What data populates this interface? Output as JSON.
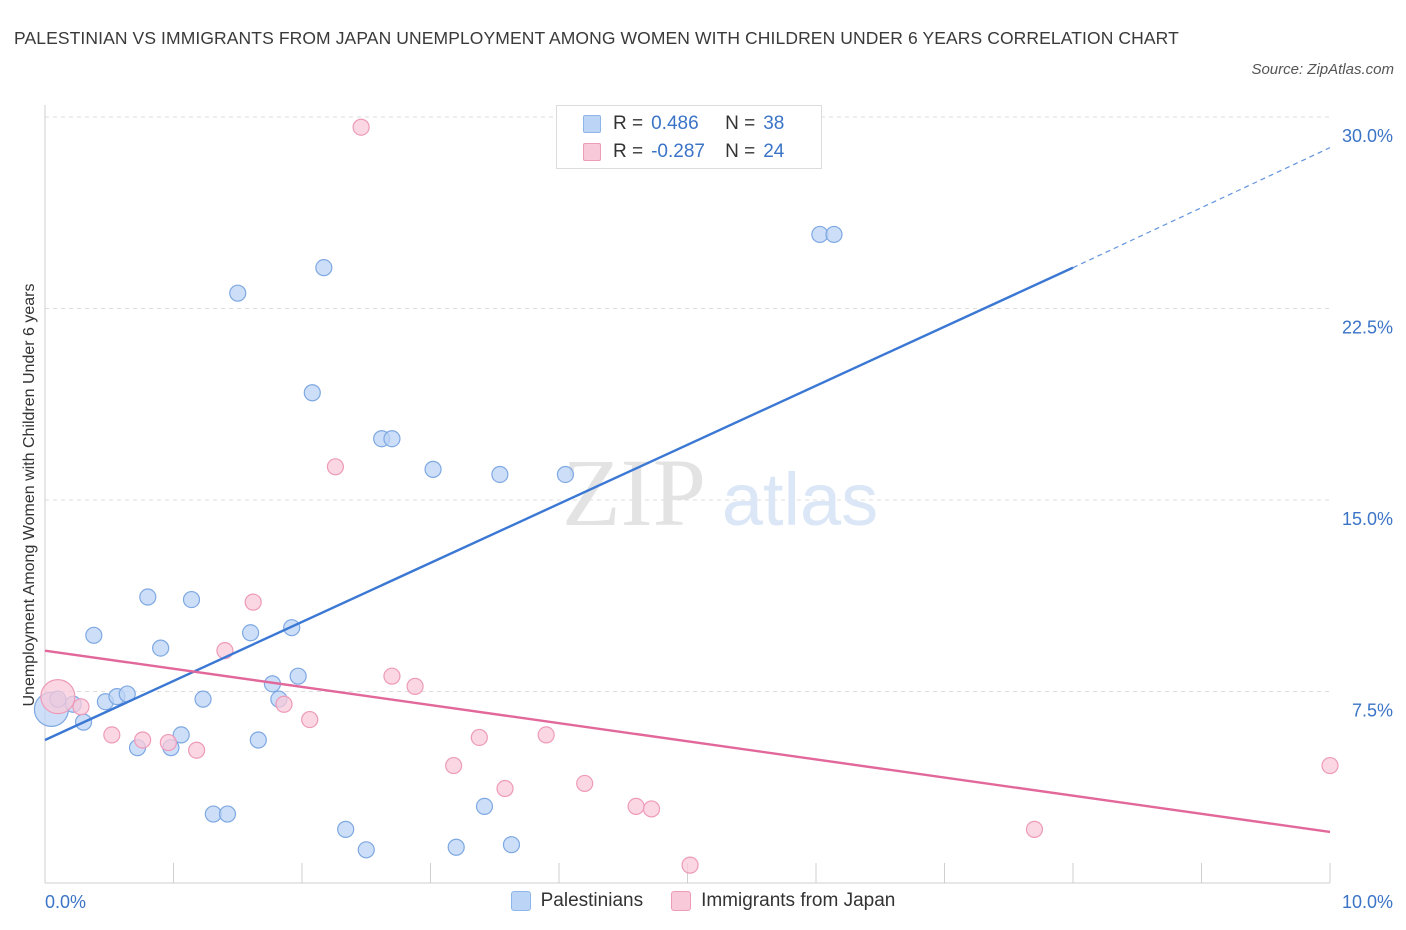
{
  "header": {
    "title": "PALESTINIAN VS IMMIGRANTS FROM JAPAN UNEMPLOYMENT AMONG WOMEN WITH CHILDREN UNDER 6 YEARS CORRELATION CHART",
    "source": "Source: ZipAtlas.com"
  },
  "watermark": {
    "zip": "ZIP",
    "atlas": "atlas"
  },
  "legend": {
    "r_label": "R =",
    "n_label": "N =",
    "rows": [
      {
        "r": "0.486",
        "n": "38",
        "color": "#8fb6ea",
        "fill": "#bcd4f5"
      },
      {
        "r": "-0.287",
        "n": "24",
        "color": "#ef9ab8",
        "fill": "#f8c9d9"
      }
    ]
  },
  "chart_data": {
    "type": "scatter",
    "title": "PALESTINIAN VS IMMIGRANTS FROM JAPAN UNEMPLOYMENT AMONG WOMEN WITH CHILDREN UNDER 6 YEARS CORRELATION CHART",
    "xlabel": "",
    "ylabel": "Unemployment Among Women with Children Under 6 years",
    "xlim": [
      0,
      10
    ],
    "ylim": [
      0,
      30
    ],
    "x_tick_labels": [
      "0.0%",
      "10.0%"
    ],
    "y_ticks": [
      7.5,
      15,
      22.5,
      30
    ],
    "y_tick_labels": [
      "7.5%",
      "15.0%",
      "22.5%",
      "30.0%"
    ],
    "grid": true,
    "legend_placement": "bottom",
    "series": [
      {
        "name": "Palestinians",
        "color": "#3b78d4",
        "fill": "#bcd4f5",
        "stroke": "#7ea8e2",
        "trend": {
          "x": [
            0,
            8
          ],
          "y": [
            5.6,
            24.1
          ],
          "dashed_to": [
            10,
            28.8
          ]
        },
        "points": [
          {
            "x": 0.05,
            "y": 6.8,
            "big": true
          },
          {
            "x": 0.1,
            "y": 7.2
          },
          {
            "x": 0.22,
            "y": 7.0
          },
          {
            "x": 0.3,
            "y": 6.3
          },
          {
            "x": 0.38,
            "y": 9.7
          },
          {
            "x": 0.47,
            "y": 7.1
          },
          {
            "x": 0.56,
            "y": 7.3
          },
          {
            "x": 0.64,
            "y": 7.4
          },
          {
            "x": 0.72,
            "y": 5.3
          },
          {
            "x": 0.8,
            "y": 11.2
          },
          {
            "x": 0.9,
            "y": 9.2
          },
          {
            "x": 0.98,
            "y": 5.3
          },
          {
            "x": 1.06,
            "y": 5.8
          },
          {
            "x": 1.14,
            "y": 11.1
          },
          {
            "x": 1.23,
            "y": 7.2
          },
          {
            "x": 1.31,
            "y": 2.7
          },
          {
            "x": 1.42,
            "y": 2.7
          },
          {
            "x": 1.5,
            "y": 23.1
          },
          {
            "x": 1.6,
            "y": 9.8
          },
          {
            "x": 1.66,
            "y": 5.6
          },
          {
            "x": 1.77,
            "y": 7.8
          },
          {
            "x": 1.82,
            "y": 7.2
          },
          {
            "x": 1.92,
            "y": 10.0
          },
          {
            "x": 1.97,
            "y": 8.1
          },
          {
            "x": 2.08,
            "y": 19.2
          },
          {
            "x": 2.17,
            "y": 24.1
          },
          {
            "x": 2.34,
            "y": 2.1
          },
          {
            "x": 2.5,
            "y": 1.3
          },
          {
            "x": 2.62,
            "y": 17.4
          },
          {
            "x": 2.7,
            "y": 17.4
          },
          {
            "x": 3.02,
            "y": 16.2
          },
          {
            "x": 3.2,
            "y": 1.4
          },
          {
            "x": 3.42,
            "y": 3.0
          },
          {
            "x": 3.54,
            "y": 16.0
          },
          {
            "x": 3.63,
            "y": 1.5
          },
          {
            "x": 4.05,
            "y": 16.0
          },
          {
            "x": 6.03,
            "y": 25.4
          },
          {
            "x": 6.14,
            "y": 25.4
          }
        ]
      },
      {
        "name": "Immigrants from Japan",
        "color": "#e2679a",
        "fill": "#f8c9d9",
        "stroke": "#ee9ab9",
        "trend": {
          "x": [
            0,
            10
          ],
          "y": [
            9.1,
            2.0
          ]
        },
        "points": [
          {
            "x": 0.1,
            "y": 7.3,
            "big": true
          },
          {
            "x": 0.28,
            "y": 6.9
          },
          {
            "x": 0.52,
            "y": 5.8
          },
          {
            "x": 0.76,
            "y": 5.6
          },
          {
            "x": 0.96,
            "y": 5.5
          },
          {
            "x": 1.18,
            "y": 5.2
          },
          {
            "x": 1.4,
            "y": 9.1
          },
          {
            "x": 1.62,
            "y": 11.0
          },
          {
            "x": 1.86,
            "y": 7.0
          },
          {
            "x": 2.06,
            "y": 6.4
          },
          {
            "x": 2.26,
            "y": 16.3
          },
          {
            "x": 2.46,
            "y": 29.6
          },
          {
            "x": 2.7,
            "y": 8.1
          },
          {
            "x": 2.88,
            "y": 7.7
          },
          {
            "x": 3.18,
            "y": 4.6
          },
          {
            "x": 3.38,
            "y": 5.7
          },
          {
            "x": 3.58,
            "y": 3.7
          },
          {
            "x": 3.9,
            "y": 5.8
          },
          {
            "x": 4.2,
            "y": 3.9
          },
          {
            "x": 4.6,
            "y": 3.0
          },
          {
            "x": 4.72,
            "y": 2.9
          },
          {
            "x": 5.02,
            "y": 0.7
          },
          {
            "x": 7.7,
            "y": 2.1
          },
          {
            "x": 10.0,
            "y": 4.6
          }
        ]
      }
    ]
  }
}
